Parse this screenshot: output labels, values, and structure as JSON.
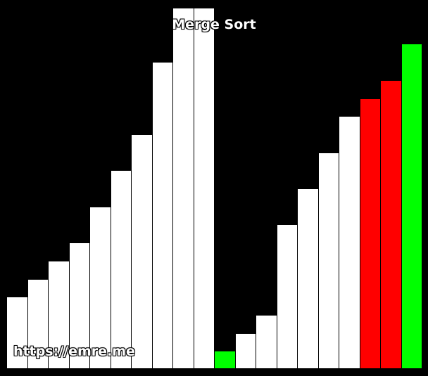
{
  "title": "Merge Sort",
  "watermark": "https://emre.me",
  "colors": {
    "background": "#000000",
    "default": "#ffffff",
    "compare": "#ff0000",
    "active": "#00ff00"
  },
  "bars": [
    {
      "value": 4,
      "state": "default"
    },
    {
      "value": 5,
      "state": "default"
    },
    {
      "value": 6,
      "state": "default"
    },
    {
      "value": 7,
      "state": "default"
    },
    {
      "value": 9,
      "state": "default"
    },
    {
      "value": 11,
      "state": "default"
    },
    {
      "value": 13,
      "state": "default"
    },
    {
      "value": 17,
      "state": "default"
    },
    {
      "value": 20,
      "state": "default"
    },
    {
      "value": 20,
      "state": "default"
    },
    {
      "value": 1,
      "state": "active"
    },
    {
      "value": 2,
      "state": "default"
    },
    {
      "value": 3,
      "state": "default"
    },
    {
      "value": 8,
      "state": "default"
    },
    {
      "value": 10,
      "state": "default"
    },
    {
      "value": 12,
      "state": "default"
    },
    {
      "value": 14,
      "state": "default"
    },
    {
      "value": 15,
      "state": "compare"
    },
    {
      "value": 16,
      "state": "compare"
    },
    {
      "value": 18,
      "state": "active"
    }
  ]
}
